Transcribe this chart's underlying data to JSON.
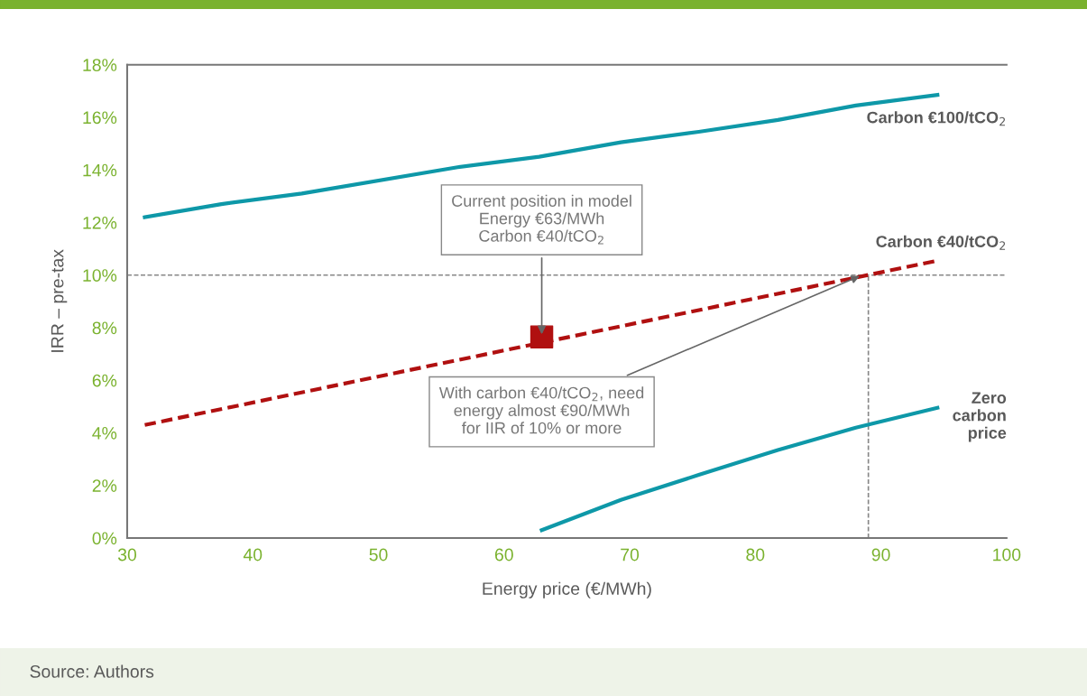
{
  "chart_data": {
    "type": "line",
    "xlabel": "Energy price (€/MWh)",
    "ylabel": "IRR – pre-tax",
    "xlim": [
      30,
      100
    ],
    "xticks": [
      30,
      40,
      50,
      60,
      70,
      80,
      90,
      100
    ],
    "ylim": [
      0,
      18
    ],
    "yticks": [
      {
        "value": 0,
        "label": "0%"
      },
      {
        "value": 2,
        "label": "2%"
      },
      {
        "value": 4,
        "label": "4%"
      },
      {
        "value": 6,
        "label": "6%"
      },
      {
        "value": 8,
        "label": "8%"
      },
      {
        "value": 10,
        "label": "10%"
      },
      {
        "value": 12,
        "label": "12%"
      },
      {
        "value": 14,
        "label": "14%"
      },
      {
        "value": 16,
        "label": "16%"
      },
      {
        "value": 18,
        "label": "18%"
      }
    ],
    "grid": false,
    "legend": false,
    "series": [
      {
        "name": "Carbon €100/tCO$_{2}$",
        "color": "#0e98a8",
        "line_style": "solid",
        "x": [
          31.4,
          37.5,
          43.9,
          56.3,
          62.8,
          69.3,
          75.5,
          81.8,
          88.0,
          94.5
        ],
        "values": [
          12.2,
          12.7,
          13.1,
          14.1,
          14.5,
          15.05,
          15.45,
          15.9,
          16.45,
          16.85
        ]
      },
      {
        "name": "Carbon €40/tCO$_{2}$",
        "color": "#b01010",
        "line_style": "dashed",
        "x": [
          31.4,
          94.5
        ],
        "values": [
          4.3,
          10.55
        ]
      },
      {
        "name": "Zero\ncarbon\nprice",
        "color": "#0e98a8",
        "line_style": "solid",
        "x": [
          63,
          69.3,
          75.5,
          81.8,
          88.0,
          94.5
        ],
        "values": [
          0.3,
          1.45,
          2.4,
          3.35,
          4.2,
          4.95
        ]
      },
      {
        "type": "scatter",
        "color": "#b01010",
        "marker": "square",
        "x": [
          63
        ],
        "values": [
          7.65
        ]
      }
    ],
    "ref_lines": [
      {
        "axis": "y",
        "value": 10,
        "color": "#888888",
        "line_style": "dashed"
      },
      {
        "axis": "x",
        "value": 89,
        "color": "#888888",
        "line_style": "dashed"
      }
    ],
    "annotations": [
      {
        "text": "Current position in model\nEnergy €63/MWh\nCarbon €40/tCO$_{2}$",
        "x": 63,
        "y": 7.65
      },
      {
        "text": "With carbon €40/tCO$_{2}$, need\nenergy almost €90/MWh\nfor IIR of 10% or more",
        "x": 88.5,
        "y": 10
      },
      "Source: Authors"
    ]
  }
}
